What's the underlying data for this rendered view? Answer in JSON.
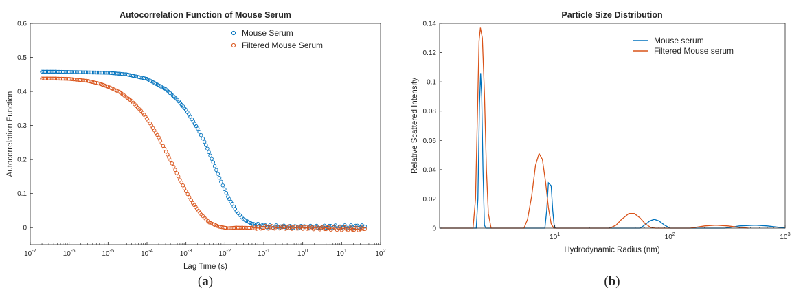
{
  "colors": {
    "blue": "#0072BD",
    "orange": "#D95319"
  },
  "chart_data": [
    {
      "type": "scatter",
      "title": "Autocorrelation Function of Mouse Serum",
      "xlabel": "Lag Time (s)",
      "ylabel": "Autocorrelation Function",
      "xscale": "log",
      "xlim": [
        1e-07,
        100
      ],
      "ylim": [
        -0.05,
        0.6
      ],
      "xticks": [
        {
          "v": -7,
          "e": "-7"
        },
        {
          "v": -6,
          "e": "-6"
        },
        {
          "v": -5,
          "e": "-5"
        },
        {
          "v": -4,
          "e": "-4"
        },
        {
          "v": -3,
          "e": "-3"
        },
        {
          "v": -2,
          "e": "-2"
        },
        {
          "v": -1,
          "e": "-1"
        },
        {
          "v": 0,
          "e": "0"
        },
        {
          "v": 1,
          "e": "1"
        },
        {
          "v": 2,
          "e": "2"
        }
      ],
      "tick_base": "10",
      "yticks": [
        {
          "v": 0,
          "label": "0"
        },
        {
          "v": 0.1,
          "label": "0.1"
        },
        {
          "v": 0.2,
          "label": "0.2"
        },
        {
          "v": 0.3,
          "label": "0.3"
        },
        {
          "v": 0.4,
          "label": "0.4"
        },
        {
          "v": 0.5,
          "label": "0.5"
        },
        {
          "v": 0.6,
          "label": "0.6"
        }
      ],
      "legend": "top-right",
      "caption": {
        "open": "(",
        "letter": "a",
        "close": ")"
      },
      "series": [
        {
          "name": "Mouse Serum",
          "color": "#0072BD",
          "points": [
            [
              2e-07,
              0.458
            ],
            [
              4e-07,
              0.458
            ],
            [
              1e-06,
              0.457
            ],
            [
              3e-06,
              0.456
            ],
            [
              1e-05,
              0.455
            ],
            [
              3e-05,
              0.45
            ],
            [
              0.0001,
              0.437
            ],
            [
              0.0003,
              0.407
            ],
            [
              0.0006,
              0.376
            ],
            [
              0.001,
              0.346
            ],
            [
              0.002,
              0.291
            ],
            [
              0.003,
              0.252
            ],
            [
              0.005,
              0.192
            ],
            [
              0.008,
              0.135
            ],
            [
              0.012,
              0.091
            ],
            [
              0.02,
              0.048
            ],
            [
              0.03,
              0.025
            ],
            [
              0.05,
              0.011
            ],
            [
              0.1,
              0.004
            ],
            [
              0.3,
              0.002
            ],
            [
              1,
              0.001
            ],
            [
              3,
              0.002
            ],
            [
              10,
              0.003
            ],
            [
              40,
              0.003
            ]
          ]
        },
        {
          "name": "Filtered Mouse Serum",
          "color": "#D95319",
          "points": [
            [
              2e-07,
              0.438
            ],
            [
              4e-07,
              0.438
            ],
            [
              1e-06,
              0.437
            ],
            [
              3e-06,
              0.431
            ],
            [
              6e-06,
              0.423
            ],
            [
              1e-05,
              0.414
            ],
            [
              2e-05,
              0.398
            ],
            [
              4e-05,
              0.372
            ],
            [
              7e-05,
              0.343
            ],
            [
              0.0001,
              0.32
            ],
            [
              0.0002,
              0.265
            ],
            [
              0.0004,
              0.198
            ],
            [
              0.0007,
              0.141
            ],
            [
              0.001,
              0.107
            ],
            [
              0.0015,
              0.072
            ],
            [
              0.0025,
              0.038
            ],
            [
              0.004,
              0.015
            ],
            [
              0.007,
              0.003
            ],
            [
              0.012,
              -0.002
            ],
            [
              0.02,
              0.0
            ],
            [
              0.05,
              -0.001
            ],
            [
              0.1,
              0.001
            ],
            [
              1,
              0.0
            ],
            [
              10,
              -0.003
            ],
            [
              40,
              -0.004
            ]
          ]
        }
      ]
    },
    {
      "type": "line",
      "title": "Particle Size Distribution",
      "xlabel": "Hydrodynamic Radius (nm)",
      "ylabel": "Relative Scattered Intensity",
      "xscale": "log",
      "xlim": [
        1,
        1000
      ],
      "ylim": [
        0,
        0.14
      ],
      "xticks": [
        {
          "v": 1,
          "e": "1"
        },
        {
          "v": 2,
          "e": "2"
        },
        {
          "v": 3,
          "e": "3"
        }
      ],
      "tick_base": "10",
      "yticks": [
        {
          "v": 0,
          "label": "0"
        },
        {
          "v": 0.02,
          "label": "0.02"
        },
        {
          "v": 0.04,
          "label": "0.04"
        },
        {
          "v": 0.06,
          "label": "0.06"
        },
        {
          "v": 0.08,
          "label": "0.08"
        },
        {
          "v": 0.1,
          "label": "0.1"
        },
        {
          "v": 0.12,
          "label": "0.12"
        },
        {
          "v": 0.14,
          "label": "0.14"
        }
      ],
      "legend": "top-right",
      "caption": {
        "open": "(",
        "letter": "b",
        "close": ")"
      },
      "series": [
        {
          "name": "Mouse serum",
          "color": "#0072BD",
          "points": [
            [
              1,
              0
            ],
            [
              2.08,
              0
            ],
            [
              2.15,
              0.02
            ],
            [
              2.22,
              0.085
            ],
            [
              2.27,
              0.106
            ],
            [
              2.32,
              0.09
            ],
            [
              2.38,
              0.04
            ],
            [
              2.45,
              0.002
            ],
            [
              2.52,
              0
            ],
            [
              8.2,
              0
            ],
            [
              8.5,
              0.012
            ],
            [
              8.8,
              0.031
            ],
            [
              9.3,
              0.029
            ],
            [
              9.6,
              0.012
            ],
            [
              9.9,
              0.001
            ],
            [
              10.2,
              0
            ],
            [
              55,
              0
            ],
            [
              60,
              0.002
            ],
            [
              67,
              0.005
            ],
            [
              73,
              0.006
            ],
            [
              80,
              0.005
            ],
            [
              90,
              0.002
            ],
            [
              100,
              0
            ],
            [
              300,
              0
            ],
            [
              400,
              0.0015
            ],
            [
              550,
              0.002
            ],
            [
              700,
              0.0015
            ],
            [
              900,
              0.0005
            ],
            [
              1000,
              0
            ]
          ]
        },
        {
          "name": "Filtered Mouse serum",
          "color": "#D95319",
          "points": [
            [
              1,
              0
            ],
            [
              1.95,
              0
            ],
            [
              2.05,
              0.02
            ],
            [
              2.14,
              0.085
            ],
            [
              2.2,
              0.128
            ],
            [
              2.26,
              0.137
            ],
            [
              2.35,
              0.13
            ],
            [
              2.45,
              0.092
            ],
            [
              2.55,
              0.04
            ],
            [
              2.65,
              0.01
            ],
            [
              2.8,
              0
            ],
            [
              5.4,
              0
            ],
            [
              5.8,
              0.006
            ],
            [
              6.3,
              0.022
            ],
            [
              6.8,
              0.043
            ],
            [
              7.3,
              0.051
            ],
            [
              7.8,
              0.047
            ],
            [
              8.3,
              0.032
            ],
            [
              8.8,
              0.014
            ],
            [
              9.3,
              0.003
            ],
            [
              9.8,
              0
            ],
            [
              30,
              0
            ],
            [
              34,
              0.002
            ],
            [
              38,
              0.006
            ],
            [
              44,
              0.01
            ],
            [
              49,
              0.01
            ],
            [
              55,
              0.007
            ],
            [
              61,
              0.003
            ],
            [
              68,
              0.0005
            ],
            [
              75,
              0
            ],
            [
              150,
              0
            ],
            [
              200,
              0.0015
            ],
            [
              250,
              0.002
            ],
            [
              320,
              0.0015
            ],
            [
              400,
              0.0005
            ],
            [
              480,
              0
            ]
          ]
        }
      ]
    }
  ]
}
